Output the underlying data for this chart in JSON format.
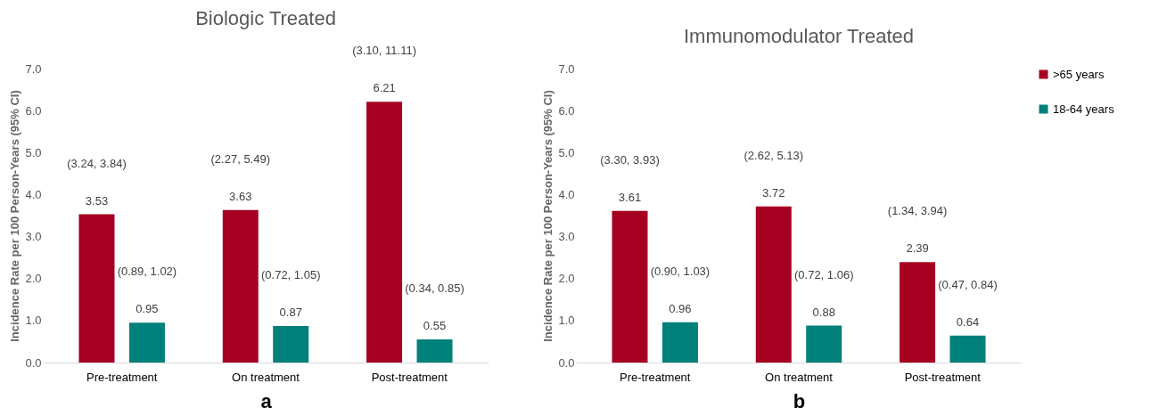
{
  "chart_data": [
    {
      "type": "bar",
      "title": "Biologic  Treated",
      "ylabel": "Incidence Rate per 100 Person-Years (95% CI)",
      "categories": [
        "Pre-treatment",
        "On treatment",
        "Post-treatment"
      ],
      "series": [
        {
          "name": ">65 years",
          "color": "#a50021",
          "values": [
            3.53,
            3.63,
            6.21
          ],
          "value_labels": [
            "(3.24, 3.84)\n3.53",
            "(2.27, 5.49)\n3.63",
            "(3.10, 11.11)\n6.21"
          ]
        },
        {
          "name": "18-64 years",
          "color": "#00807a",
          "values": [
            0.95,
            0.87,
            0.55
          ],
          "value_labels": [
            "(0.89, 1.02)\n0.95",
            "(0.72, 1.05)\n0.87",
            "(0.34, 0.85)\n0.55"
          ]
        }
      ],
      "ylim": [
        0,
        7
      ],
      "yticks": [
        {
          "value": 0,
          "label": "0.0"
        },
        {
          "value": 1,
          "label": "1.0"
        },
        {
          "value": 2,
          "label": "2.0"
        },
        {
          "value": 3,
          "label": "3.0"
        },
        {
          "value": 4,
          "label": "4.0"
        },
        {
          "value": 5,
          "label": "5.0"
        },
        {
          "value": 6,
          "label": "6.0"
        },
        {
          "value": 7,
          "label": "7.0"
        }
      ],
      "grid": false,
      "legend": "top right",
      "annotations": [
        "a"
      ]
    },
    {
      "type": "bar",
      "title": "Immunomodulator Treated",
      "ylabel": "Incidence Rate per 100 Person-Years (95% CI)",
      "categories": [
        "Pre-treatment",
        "On treatment",
        "Post-treatment"
      ],
      "series": [
        {
          "name": ">65 years",
          "color": "#a50021",
          "values": [
            3.61,
            3.72,
            2.39
          ],
          "value_labels": [
            "(3.30, 3.93)\n3.61",
            "(2.62, 5.13)\n3.72",
            "(1.34, 3.94)\n2.39"
          ]
        },
        {
          "name": "18-64 years",
          "color": "#00807a",
          "values": [
            0.96,
            0.88,
            0.64
          ],
          "value_labels": [
            "(0.90, 1.03)\n0.96",
            "(0.72, 1.06)\n0.88",
            "(0.47, 0.84)\n0.64"
          ]
        }
      ],
      "ylim": [
        0,
        7
      ],
      "yticks": [
        {
          "value": 0,
          "label": "0.0"
        },
        {
          "value": 1,
          "label": "1.0"
        },
        {
          "value": 2,
          "label": "2.0"
        },
        {
          "value": 3,
          "label": "3.0"
        },
        {
          "value": 4,
          "label": "4.0"
        },
        {
          "value": 5,
          "label": "5.0"
        },
        {
          "value": 6,
          "label": "6.0"
        },
        {
          "value": 7,
          "label": "7.0"
        }
      ],
      "grid": false,
      "legend": "top right",
      "annotations": [
        "b"
      ]
    }
  ]
}
